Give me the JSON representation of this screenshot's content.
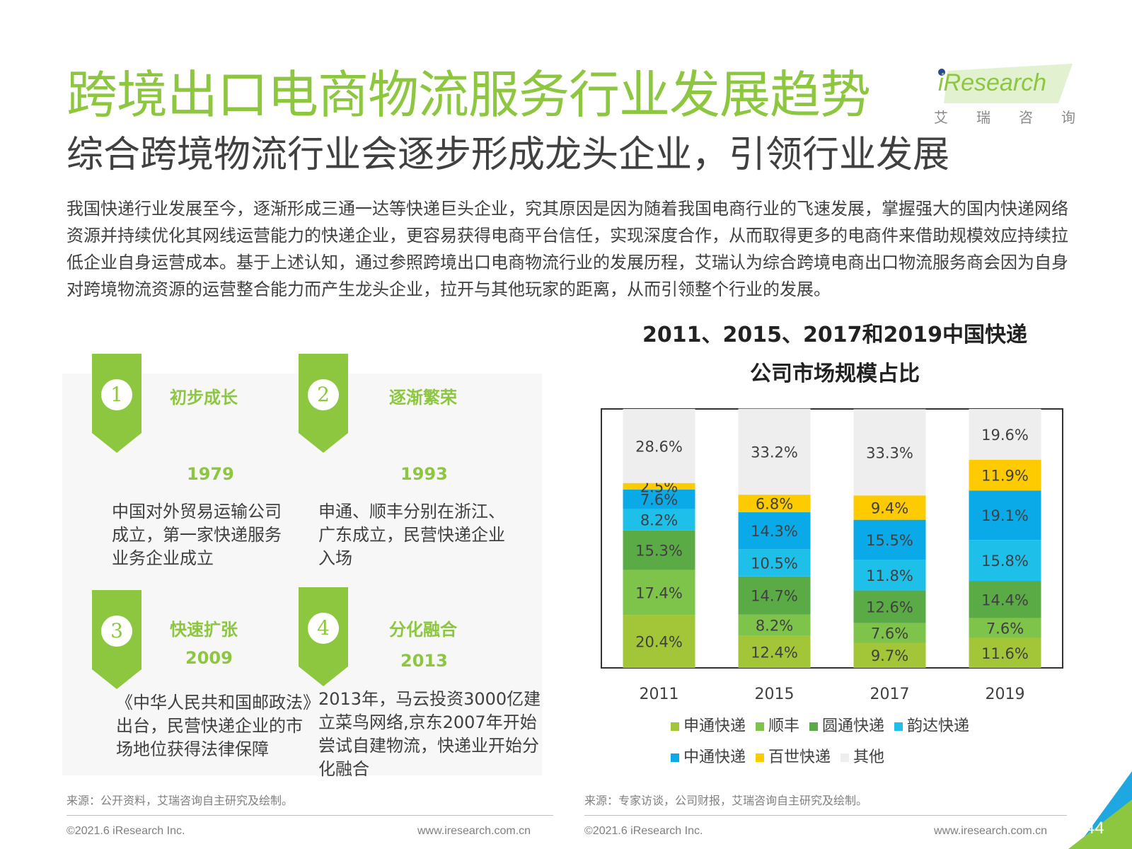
{
  "header": {
    "title": "跨境出口电商物流服务行业发展趋势",
    "subtitle": "综合跨境物流行业会逐步形成龙头企业，引领行业发展",
    "logo_word": "iResearch",
    "logo_cn": [
      "艾",
      "瑞",
      "咨",
      "询"
    ]
  },
  "intro": "我国快递行业发展至今，逐渐形成三通一达等快递巨头企业，究其原因是因为随着我国电商行业的飞速发展，掌握强大的国内快递网络资源并持续优化其网线运营能力的快递企业，更容易获得电商平台信任，实现深度合作，从而取得更多的电商件来借助规模效应持续拉低企业自身运营成本。基于上述认知，通过参照跨境出口电商物流行业的发展历程，艾瑞认为综合跨境电商出口物流服务商会因为自身对跨境物流资源的运营整合能力而产生龙头企业，拉开与其他玩家的距离，从而引领整个行业的发展。",
  "stages": [
    {
      "num": "1",
      "title": "初步成长",
      "year": "1979",
      "desc": "中国对外贸易运输公司成立，第一家快递服务业务企业成立"
    },
    {
      "num": "2",
      "title": "逐渐繁荣",
      "year": "1993",
      "desc": "申通、顺丰分别在浙江、广东成立，民营快递企业入场"
    },
    {
      "num": "3",
      "title": "快速扩张",
      "year": "2009",
      "desc": "《中华人民共和国邮政法》出台，民营快递企业的市场地位获得法律保障"
    },
    {
      "num": "4",
      "title": "分化融合",
      "year": "2013",
      "desc": "2013年，马云投资3000亿建立菜鸟网络,京东2007年开始尝试自建物流，快递业开始分化融合"
    }
  ],
  "chart_title_lines": [
    "2011、2015、2017和2019中国快递",
    "公司市场规模占比"
  ],
  "chart_data": {
    "type": "bar",
    "stacked": true,
    "title": "2011、2015、2017和2019中国快递公司市场规模占比",
    "categories": [
      "2011",
      "2015",
      "2017",
      "2019"
    ],
    "series": [
      {
        "name": "申通快递",
        "color": "#a3c639",
        "values": [
          20.4,
          12.4,
          9.7,
          11.6
        ]
      },
      {
        "name": "顺丰",
        "color": "#7ec34a",
        "values": [
          17.4,
          8.2,
          7.6,
          7.6
        ]
      },
      {
        "name": "圆通快递",
        "color": "#5aab46",
        "values": [
          15.3,
          14.7,
          12.6,
          14.4
        ]
      },
      {
        "name": "韵达快递",
        "color": "#1ec0ea",
        "values": [
          8.2,
          10.5,
          11.8,
          15.8
        ]
      },
      {
        "name": "中通快递",
        "color": "#0aaae8",
        "values": [
          7.6,
          14.3,
          15.5,
          19.1
        ]
      },
      {
        "name": "百世快递",
        "color": "#fdcb00",
        "values": [
          2.5,
          6.8,
          9.4,
          11.9
        ]
      },
      {
        "name": "其他",
        "color": "#eeeeee",
        "values": [
          28.6,
          33.2,
          33.3,
          19.6
        ]
      }
    ],
    "labels": [
      [
        "20.4%",
        "12.4%",
        "9.7%",
        "11.6%"
      ],
      [
        "17.4%",
        "8.2%",
        "7.6%",
        "7.6%"
      ],
      [
        "15.3%",
        "14.7%",
        "12.6%",
        "14.4%"
      ],
      [
        "8.2%",
        "10.5%",
        "11.8%",
        "15.8%"
      ],
      [
        "7.6%",
        "14.3%",
        "15.5%",
        "19.1%"
      ],
      [
        "2.5%",
        "6.8%",
        "9.4%",
        "11.9%"
      ],
      [
        "28.6%",
        "33.2%",
        "33.3%",
        "19.6%"
      ]
    ],
    "ylim": [
      0,
      100
    ],
    "legend_position": "bottom"
  },
  "sources": {
    "left": "来源：公开资料，艾瑞咨询自主研究及绘制。",
    "right": "来源：专家访谈，公司财报，艾瑞咨询自主研究及绘制。"
  },
  "footer": {
    "copyright": "©2021.6 iResearch Inc.",
    "website": "www.iresearch.com.cn",
    "page": "44"
  }
}
